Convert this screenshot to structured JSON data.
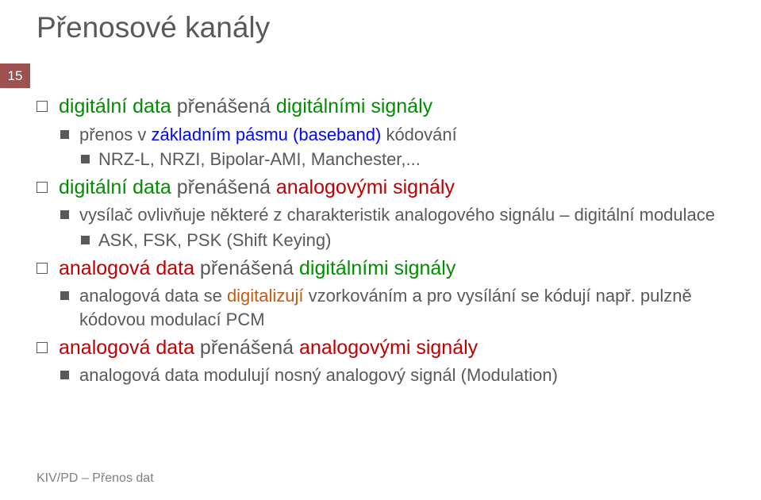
{
  "title": "Přenosové kanály",
  "page_number": "15",
  "footer": "KIV/PD – Přenos dat",
  "colors": {
    "digital": "#008e00",
    "analog": "#c00000",
    "baseband": "#0006ff",
    "digitize": "#c55a11",
    "text": "#595959",
    "accent_box": "#9e5151",
    "background": "#ffffff"
  },
  "typography": {
    "title_fontsize": 37,
    "level1_fontsize": 25,
    "level2_fontsize": 22,
    "level3_fontsize": 22,
    "footer_fontsize": 16,
    "font_family": "Arial"
  },
  "items": [
    {
      "spans": [
        {
          "t": "digitální data",
          "c": "digital"
        },
        {
          "t": " přenášená "
        },
        {
          "t": "digitálními signály",
          "c": "digital"
        }
      ],
      "children": [
        {
          "spans": [
            {
              "t": "přenos v "
            },
            {
              "t": "základním pásmu (baseband)",
              "c": "baseband"
            },
            {
              "t": " kódování"
            }
          ],
          "children": [
            {
              "spans": [
                {
                  "t": "NRZ-L, NRZI, Bipolar-AMI, Manchester,..."
                }
              ]
            }
          ]
        }
      ]
    },
    {
      "spans": [
        {
          "t": "digitální data",
          "c": "digital"
        },
        {
          "t": " přenášená "
        },
        {
          "t": "analogovými signály",
          "c": "analog"
        }
      ],
      "children": [
        {
          "spans": [
            {
              "t": "vysílač ovlivňuje některé z charakteristik analogového signálu – digitální modulace"
            }
          ],
          "children": [
            {
              "spans": [
                {
                  "t": "ASK, FSK, PSK (Shift Keying)"
                }
              ]
            }
          ]
        }
      ]
    },
    {
      "spans": [
        {
          "t": "analogová data",
          "c": "analog"
        },
        {
          "t": " přenášená "
        },
        {
          "t": "digitálními signály",
          "c": "digital"
        }
      ],
      "children": [
        {
          "spans": [
            {
              "t": "analogová data se "
            },
            {
              "t": "digitalizují",
              "c": "digitize"
            },
            {
              "t": " vzorkováním a pro vysílání se kódují např. pulzně kódovou modulací PCM"
            }
          ]
        }
      ]
    },
    {
      "spans": [
        {
          "t": "analogová data",
          "c": "analog"
        },
        {
          "t": " přenášená "
        },
        {
          "t": "analogovými signály",
          "c": "analog"
        }
      ],
      "children": [
        {
          "spans": [
            {
              "t": "analogová data modulují nosný analogový signál (Modulation)"
            }
          ]
        }
      ]
    }
  ]
}
